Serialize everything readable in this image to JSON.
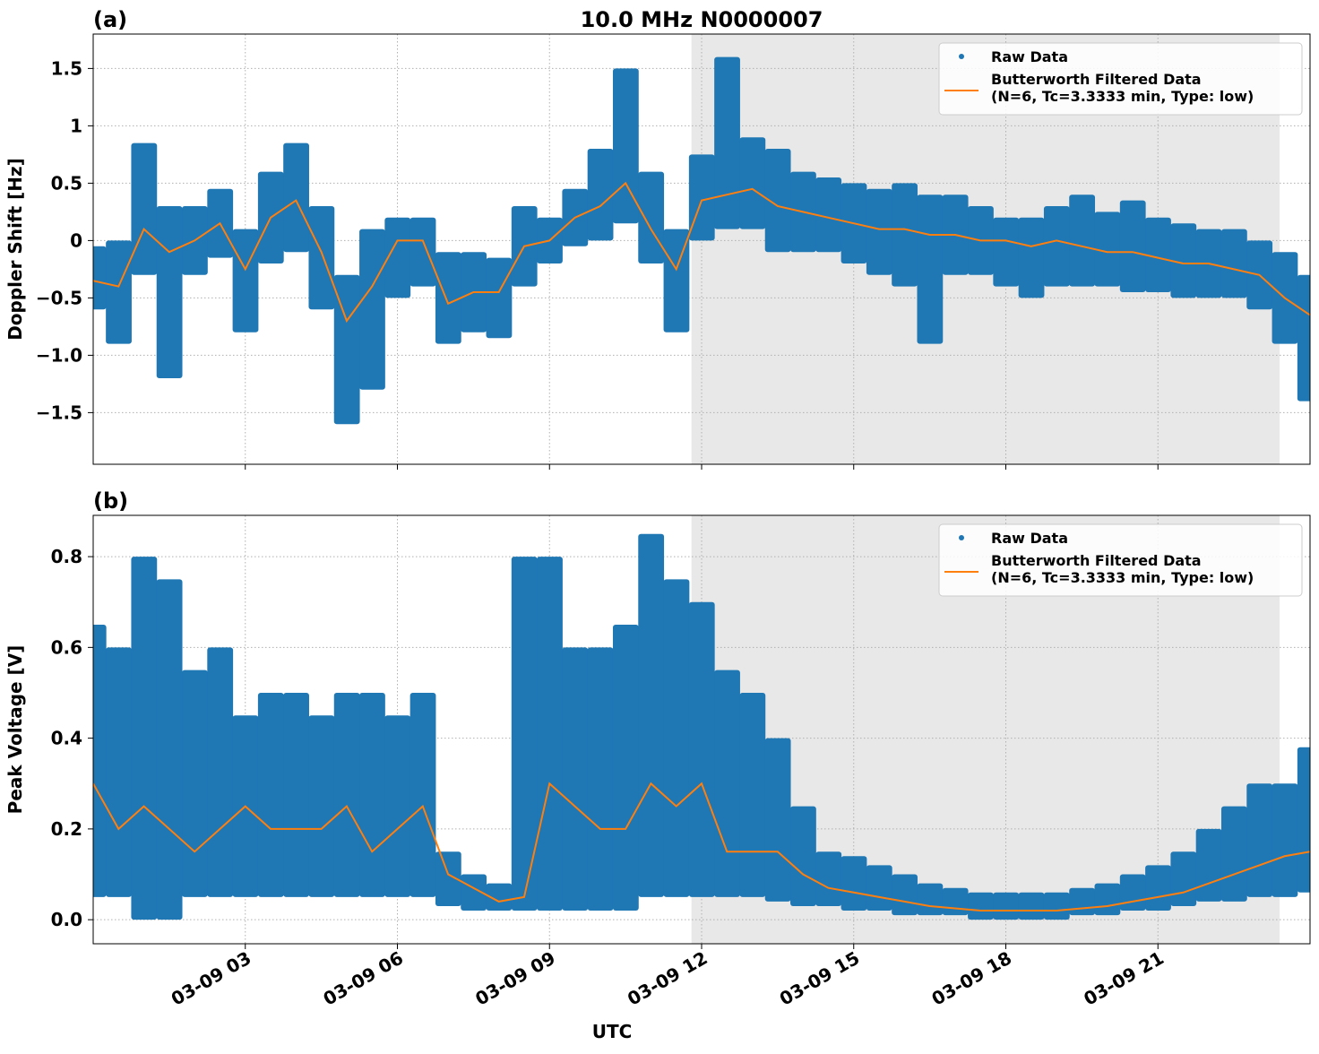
{
  "chart_data": [
    {
      "type": "line",
      "title": "10.0 MHz N0000007",
      "panel_label": "(a)",
      "ylabel": "Doppler Shift [Hz]",
      "xlim": [
        0,
        24
      ],
      "xticks": [
        3,
        6,
        9,
        12,
        15,
        18,
        21
      ],
      "show_xtick_labels": false,
      "ylim": [
        -1.95,
        1.8
      ],
      "yticks": [
        {
          "value": -1.5,
          "label": "−1.5"
        },
        {
          "value": -1.0,
          "label": "−1.0"
        },
        {
          "value": -0.5,
          "label": "−0.5"
        },
        0.0,
        0.5,
        1.0,
        1.5
      ],
      "grid": true,
      "shade_x": [
        11.8,
        23.4
      ],
      "shade_color": "#e8e8e8",
      "legend": "upper right",
      "x": [
        0,
        0.5,
        1,
        1.5,
        2,
        2.5,
        3,
        3.5,
        4,
        4.5,
        5,
        5.5,
        6,
        6.5,
        7,
        7.5,
        8,
        8.5,
        9,
        9.5,
        10,
        10.5,
        11,
        11.5,
        12,
        12.5,
        13,
        13.5,
        14,
        14.5,
        15,
        15.5,
        16,
        16.5,
        17,
        17.5,
        18,
        18.5,
        19,
        19.5,
        20,
        20.5,
        21,
        21.5,
        22,
        22.5,
        23,
        23.5,
        24
      ],
      "series": [
        {
          "name": "Raw Data",
          "style": "range",
          "color": "#1f77b4",
          "high": [
            -0.05,
            0.0,
            0.85,
            0.3,
            0.3,
            0.45,
            0.1,
            0.6,
            0.85,
            0.3,
            -0.3,
            0.1,
            0.2,
            0.2,
            -0.1,
            -0.1,
            -0.15,
            0.3,
            0.2,
            0.45,
            0.8,
            1.5,
            0.6,
            0.1,
            0.75,
            1.6,
            0.9,
            0.8,
            0.6,
            0.55,
            0.5,
            0.45,
            0.5,
            0.4,
            0.4,
            0.3,
            0.2,
            0.2,
            0.3,
            0.4,
            0.25,
            0.35,
            0.2,
            0.15,
            0.1,
            0.1,
            0.0,
            -0.1,
            -0.3
          ],
          "low": [
            -0.6,
            -0.9,
            -0.3,
            -1.2,
            -0.3,
            -0.15,
            -0.8,
            -0.2,
            -0.1,
            -0.6,
            -1.6,
            -1.3,
            -0.5,
            -0.4,
            -0.9,
            -0.8,
            -0.85,
            -0.4,
            -0.2,
            -0.05,
            0.0,
            0.15,
            -0.2,
            -0.8,
            0.0,
            0.1,
            0.1,
            -0.1,
            -0.1,
            -0.1,
            -0.2,
            -0.3,
            -0.4,
            -0.9,
            -0.3,
            -0.3,
            -0.4,
            -0.5,
            -0.4,
            -0.4,
            -0.4,
            -0.45,
            -0.45,
            -0.5,
            -0.5,
            -0.5,
            -0.6,
            -0.9,
            -1.4
          ]
        },
        {
          "name": [
            "Butterworth Filtered Data",
            "(N=6, Tc=3.3333 min, Type: low)"
          ],
          "style": "line",
          "color": "#ff7f0e",
          "values": [
            -0.35,
            -0.4,
            0.1,
            -0.1,
            0.0,
            0.15,
            -0.25,
            0.2,
            0.35,
            -0.1,
            -0.7,
            -0.4,
            0.0,
            0.0,
            -0.55,
            -0.45,
            -0.45,
            -0.05,
            0.0,
            0.2,
            0.3,
            0.5,
            0.1,
            -0.25,
            0.35,
            0.4,
            0.45,
            0.3,
            0.25,
            0.2,
            0.15,
            0.1,
            0.1,
            0.05,
            0.05,
            0.0,
            0.0,
            -0.05,
            0.0,
            -0.05,
            -0.1,
            -0.1,
            -0.15,
            -0.2,
            -0.2,
            -0.25,
            -0.3,
            -0.5,
            -0.65
          ]
        }
      ]
    },
    {
      "type": "line",
      "panel_label": "(b)",
      "ylabel": "Peak Voltage [V]",
      "xlabel": "UTC",
      "xlim": [
        0,
        24
      ],
      "xticks": [
        {
          "value": 3,
          "label": "03-09 03"
        },
        {
          "value": 6,
          "label": "03-09 06"
        },
        {
          "value": 9,
          "label": "03-09 09"
        },
        {
          "value": 12,
          "label": "03-09 12"
        },
        {
          "value": 15,
          "label": "03-09 15"
        },
        {
          "value": 18,
          "label": "03-09 18"
        },
        {
          "value": 21,
          "label": "03-09 21"
        }
      ],
      "show_xtick_labels": true,
      "ylim": [
        -0.053,
        0.891
      ],
      "yticks": [
        {
          "value": 0,
          "label": "0.0"
        },
        0.2,
        0.4,
        0.6,
        0.8
      ],
      "grid": true,
      "shade_x": [
        11.8,
        23.4
      ],
      "shade_color": "#e8e8e8",
      "legend": "upper right",
      "x": [
        0,
        0.5,
        1,
        1.5,
        2,
        2.5,
        3,
        3.5,
        4,
        4.5,
        5,
        5.5,
        6,
        6.5,
        7,
        7.5,
        8,
        8.5,
        9,
        9.5,
        10,
        10.5,
        11,
        11.5,
        12,
        12.5,
        13,
        13.5,
        14,
        14.5,
        15,
        15.5,
        16,
        16.5,
        17,
        17.5,
        18,
        18.5,
        19,
        19.5,
        20,
        20.5,
        21,
        21.5,
        22,
        22.5,
        23,
        23.5,
        24
      ],
      "series": [
        {
          "name": "Raw Data",
          "style": "range",
          "color": "#1f77b4",
          "high": [
            0.65,
            0.6,
            0.8,
            0.75,
            0.55,
            0.6,
            0.45,
            0.5,
            0.5,
            0.45,
            0.5,
            0.5,
            0.45,
            0.5,
            0.15,
            0.1,
            0.08,
            0.8,
            0.8,
            0.6,
            0.6,
            0.65,
            0.85,
            0.75,
            0.7,
            0.55,
            0.5,
            0.4,
            0.25,
            0.15,
            0.14,
            0.12,
            0.1,
            0.08,
            0.07,
            0.06,
            0.06,
            0.06,
            0.06,
            0.07,
            0.08,
            0.1,
            0.12,
            0.15,
            0.2,
            0.25,
            0.3,
            0.3,
            0.38
          ],
          "low": [
            0.05,
            0.05,
            0.0,
            0.0,
            0.05,
            0.05,
            0.05,
            0.05,
            0.05,
            0.05,
            0.05,
            0.05,
            0.05,
            0.05,
            0.03,
            0.02,
            0.02,
            0.02,
            0.02,
            0.02,
            0.02,
            0.02,
            0.05,
            0.05,
            0.05,
            0.05,
            0.05,
            0.04,
            0.03,
            0.03,
            0.02,
            0.02,
            0.01,
            0.01,
            0.01,
            0.0,
            0.0,
            0.0,
            0.0,
            0.01,
            0.01,
            0.02,
            0.02,
            0.03,
            0.04,
            0.04,
            0.05,
            0.05,
            0.06
          ]
        },
        {
          "name": [
            "Butterworth Filtered Data",
            "(N=6, Tc=3.3333 min, Type: low)"
          ],
          "style": "line",
          "color": "#ff7f0e",
          "values": [
            0.3,
            0.2,
            0.25,
            0.2,
            0.15,
            0.2,
            0.25,
            0.2,
            0.2,
            0.2,
            0.25,
            0.15,
            0.2,
            0.25,
            0.1,
            0.07,
            0.04,
            0.05,
            0.3,
            0.25,
            0.2,
            0.2,
            0.3,
            0.25,
            0.3,
            0.15,
            0.15,
            0.15,
            0.1,
            0.07,
            0.06,
            0.05,
            0.04,
            0.03,
            0.025,
            0.02,
            0.02,
            0.02,
            0.02,
            0.025,
            0.03,
            0.04,
            0.05,
            0.06,
            0.08,
            0.1,
            0.12,
            0.14,
            0.15
          ]
        }
      ]
    }
  ]
}
